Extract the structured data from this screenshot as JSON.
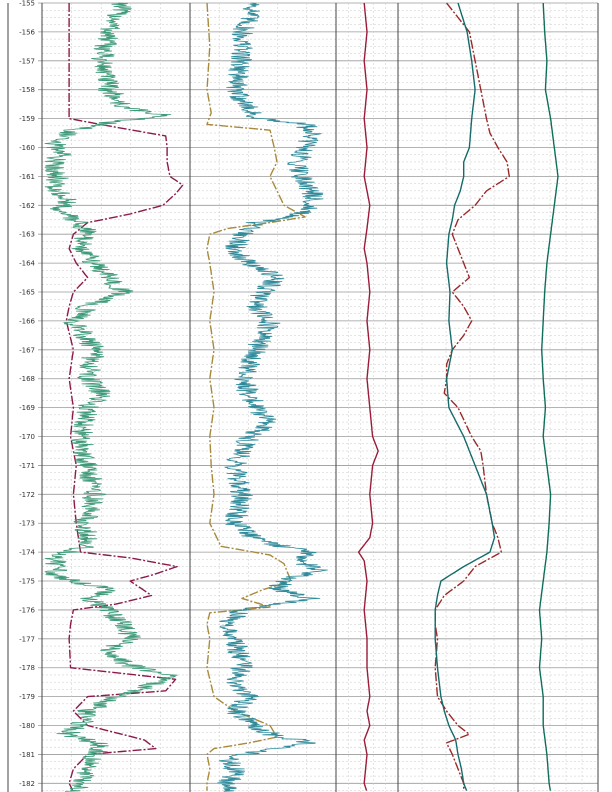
{
  "chart_data": {
    "type": "line",
    "title": "",
    "xlabel": "",
    "ylabel": "",
    "ylim": [
      -182.3,
      -155.0
    ],
    "y_ticks": [
      -155,
      -156,
      -157,
      -158,
      -159,
      -160,
      -161,
      -162,
      -163,
      -164,
      -165,
      -166,
      -167,
      -168,
      -169,
      -170,
      -171,
      -172,
      -173,
      -174,
      -175,
      -176,
      -177,
      -178,
      -179,
      -180,
      -181,
      -182
    ],
    "grid": true,
    "tracks": [
      {
        "series": [
          {
            "color": "#8b1a4a",
            "style": "dashdot",
            "xlim": [
              0,
              1
            ],
            "depth": [
              -155.0,
              -159.0,
              -159.3,
              -159.6,
              -160.0,
              -160.5,
              -161.0,
              -161.3,
              -161.6,
              -162.0,
              -162.3,
              -162.6,
              -163.0,
              -163.5,
              -164.0,
              -164.5,
              -165.0,
              -165.5,
              -166.0,
              -167.0,
              -168.0,
              -169.0,
              -170.0,
              -171.0,
              -172.0,
              -173.0,
              -174.0,
              -174.2,
              -174.5,
              -174.8,
              -175.0,
              -175.5,
              -175.8,
              -176.0,
              -176.5,
              -177.0,
              -178.0,
              -178.4,
              -178.8,
              -179.0,
              -179.5,
              -180.0,
              -180.5,
              -180.8,
              -181.0,
              -181.5,
              -182.0,
              -182.3
            ],
            "value": [
              0.17,
              0.17,
              0.5,
              0.85,
              0.86,
              0.86,
              0.88,
              0.97,
              0.92,
              0.83,
              0.6,
              0.3,
              0.2,
              0.17,
              0.22,
              0.3,
              0.2,
              0.17,
              0.15,
              0.2,
              0.17,
              0.2,
              0.18,
              0.22,
              0.2,
              0.22,
              0.25,
              0.6,
              0.93,
              0.75,
              0.6,
              0.75,
              0.5,
              0.2,
              0.18,
              0.17,
              0.18,
              0.92,
              0.85,
              0.3,
              0.2,
              0.3,
              0.7,
              0.78,
              0.3,
              0.2,
              0.17,
              0.2
            ]
          },
          {
            "color": "#3d9a78",
            "style": "noisy",
            "xlim": [
              0,
              1
            ],
            "depth": [
              -155.0,
              -156.0,
              -157.0,
              -158.0,
              -158.6,
              -158.9,
              -159.1,
              -159.4,
              -159.8,
              -160.2,
              -160.6,
              -161.0,
              -161.4,
              -161.8,
              -162.2,
              -162.6,
              -163.0,
              -163.5,
              -164.0,
              -164.5,
              -165.0,
              -165.5,
              -166.0,
              -167.0,
              -168.0,
              -168.5,
              -169.0,
              -170.0,
              -171.0,
              -172.0,
              -173.0,
              -173.8,
              -174.2,
              -174.5,
              -174.8,
              -175.0,
              -175.3,
              -175.6,
              -176.0,
              -176.5,
              -177.0,
              -177.5,
              -178.0,
              -178.3,
              -178.6,
              -179.0,
              -179.5,
              -180.0,
              -180.3,
              -180.5,
              -180.7,
              -181.0,
              -181.5,
              -182.0,
              -182.3
            ],
            "value": [
              0.55,
              0.45,
              0.4,
              0.45,
              0.55,
              0.85,
              0.5,
              0.2,
              0.05,
              0.12,
              0.05,
              0.1,
              0.05,
              0.15,
              0.1,
              0.25,
              0.3,
              0.25,
              0.35,
              0.45,
              0.55,
              0.3,
              0.2,
              0.35,
              0.3,
              0.4,
              0.3,
              0.25,
              0.3,
              0.35,
              0.28,
              0.3,
              0.05,
              0.1,
              0.05,
              0.2,
              0.45,
              0.3,
              0.45,
              0.55,
              0.6,
              0.4,
              0.65,
              0.9,
              0.75,
              0.5,
              0.3,
              0.25,
              0.15,
              0.3,
              0.4,
              0.35,
              0.3,
              0.25,
              0.2
            ]
          }
        ]
      },
      {
        "series": [
          {
            "color": "#a88a3c",
            "style": "dashdot",
            "xlim": [
              0,
              1
            ],
            "depth": [
              -155.0,
              -156.5,
              -158.0,
              -158.8,
              -159.2,
              -159.4,
              -160.0,
              -160.5,
              -161.0,
              -161.5,
              -162.0,
              -162.4,
              -162.6,
              -162.8,
              -163.0,
              -163.5,
              -164.0,
              -165.0,
              -166.0,
              -167.0,
              -168.0,
              -169.0,
              -170.0,
              -171.0,
              -172.0,
              -173.0,
              -173.8,
              -174.1,
              -174.4,
              -175.0,
              -175.3,
              -175.6,
              -175.9,
              -176.1,
              -176.5,
              -177.0,
              -178.0,
              -179.0,
              -179.5,
              -180.0,
              -180.4,
              -180.6,
              -180.8,
              -181.0,
              -181.5,
              -182.0,
              -182.3
            ],
            "value": [
              0.1,
              0.12,
              0.1,
              0.13,
              0.1,
              0.55,
              0.58,
              0.6,
              0.55,
              0.6,
              0.65,
              0.8,
              0.55,
              0.25,
              0.12,
              0.1,
              0.12,
              0.15,
              0.12,
              0.15,
              0.12,
              0.15,
              0.12,
              0.13,
              0.15,
              0.12,
              0.2,
              0.55,
              0.65,
              0.7,
              0.5,
              0.35,
              0.55,
              0.12,
              0.1,
              0.12,
              0.1,
              0.15,
              0.3,
              0.55,
              0.6,
              0.4,
              0.15,
              0.1,
              0.12,
              0.1,
              0.1
            ]
          },
          {
            "color": "#2e8a9a",
            "style": "noisy",
            "xlim": [
              0,
              1
            ],
            "depth": [
              -155.0,
              -156.0,
              -157.0,
              -158.0,
              -159.0,
              -159.2,
              -159.5,
              -160.0,
              -160.5,
              -161.0,
              -161.5,
              -162.0,
              -162.3,
              -162.6,
              -163.0,
              -163.5,
              -164.0,
              -164.5,
              -165.0,
              -165.5,
              -166.0,
              -167.0,
              -168.0,
              -169.0,
              -169.5,
              -170.0,
              -171.0,
              -172.0,
              -173.0,
              -173.6,
              -174.0,
              -174.3,
              -174.6,
              -175.0,
              -175.3,
              -175.6,
              -176.0,
              -176.5,
              -177.0,
              -178.0,
              -178.5,
              -179.0,
              -179.5,
              -180.0,
              -180.3,
              -180.6,
              -180.9,
              -181.2,
              -181.6,
              -182.0,
              -182.3
            ],
            "value": [
              0.45,
              0.35,
              0.35,
              0.3,
              0.45,
              0.8,
              0.85,
              0.8,
              0.75,
              0.78,
              0.85,
              0.85,
              0.75,
              0.45,
              0.35,
              0.3,
              0.4,
              0.6,
              0.5,
              0.45,
              0.55,
              0.45,
              0.35,
              0.45,
              0.55,
              0.4,
              0.3,
              0.35,
              0.3,
              0.45,
              0.85,
              0.75,
              0.9,
              0.65,
              0.6,
              0.85,
              0.35,
              0.25,
              0.3,
              0.35,
              0.3,
              0.4,
              0.3,
              0.45,
              0.55,
              0.85,
              0.45,
              0.25,
              0.3,
              0.25,
              0.3
            ]
          }
        ]
      },
      {
        "series": [
          {
            "color": "#9a1c38",
            "style": "solid",
            "xlim": [
              0,
              1
            ],
            "depth": [
              -155.0,
              -156.0,
              -157.0,
              -158.0,
              -159.0,
              -160.0,
              -161.0,
              -162.0,
              -162.8,
              -163.5,
              -164.0,
              -165.0,
              -166.0,
              -167.0,
              -168.0,
              -169.0,
              -170.0,
              -170.5,
              -171.0,
              -172.0,
              -173.0,
              -173.5,
              -174.0,
              -174.3,
              -175.0,
              -176.0,
              -177.0,
              -178.0,
              -179.0,
              -179.5,
              -180.0,
              -180.5,
              -181.0,
              -182.0,
              -182.3
            ],
            "value": [
              0.45,
              0.5,
              0.45,
              0.5,
              0.45,
              0.5,
              0.45,
              0.55,
              0.5,
              0.45,
              0.5,
              0.55,
              0.5,
              0.55,
              0.5,
              0.55,
              0.6,
              0.7,
              0.6,
              0.55,
              0.6,
              0.55,
              0.35,
              0.45,
              0.5,
              0.45,
              0.5,
              0.5,
              0.55,
              0.5,
              0.55,
              0.45,
              0.5,
              0.45,
              0.5
            ]
          }
        ]
      },
      {
        "series": [
          {
            "color": "#9a2a2a",
            "style": "dashdot",
            "xlim": [
              0,
              1
            ],
            "depth": [
              -155.0,
              -156.0,
              -157.0,
              -158.0,
              -159.0,
              -159.5,
              -160.0,
              -160.5,
              -161.0,
              -161.5,
              -162.0,
              -162.5,
              -163.0,
              -164.0,
              -164.5,
              -165.0,
              -165.5,
              -166.0,
              -166.5,
              -167.0,
              -167.5,
              -168.0,
              -168.5,
              -169.0,
              -170.0,
              -170.5,
              -171.0,
              -172.0,
              -173.0,
              -173.5,
              -174.0,
              -174.5,
              -175.0,
              -175.5,
              -176.0,
              -176.5,
              -177.0,
              -178.0,
              -179.0,
              -179.5,
              -180.0,
              -180.3,
              -180.6,
              -181.0,
              -181.5,
              -182.0,
              -182.3
            ],
            "value": [
              0.4,
              0.6,
              0.65,
              0.7,
              0.75,
              0.78,
              0.85,
              0.93,
              0.95,
              0.75,
              0.65,
              0.5,
              0.45,
              0.55,
              0.6,
              0.45,
              0.55,
              0.62,
              0.55,
              0.45,
              0.4,
              0.4,
              0.38,
              0.5,
              0.62,
              0.7,
              0.72,
              0.75,
              0.8,
              0.85,
              0.88,
              0.65,
              0.55,
              0.38,
              0.3,
              0.3,
              0.32,
              0.3,
              0.32,
              0.4,
              0.5,
              0.6,
              0.4,
              0.45,
              0.5,
              0.55,
              0.55
            ]
          },
          {
            "color": "#156a6a",
            "style": "solid",
            "xlim": [
              0,
              1
            ],
            "depth": [
              -155.0,
              -156.0,
              -157.0,
              -158.0,
              -159.0,
              -160.0,
              -160.5,
              -161.0,
              -161.5,
              -162.0,
              -162.5,
              -163.0,
              -164.0,
              -165.0,
              -166.0,
              -167.0,
              -168.0,
              -169.0,
              -170.0,
              -171.0,
              -172.0,
              -173.0,
              -173.5,
              -174.0,
              -174.5,
              -175.0,
              -175.5,
              -176.0,
              -177.0,
              -178.0,
              -179.0,
              -179.5,
              -180.0,
              -180.5,
              -181.0,
              -181.5,
              -182.0,
              -182.3
            ],
            "value": [
              0.5,
              0.58,
              0.62,
              0.65,
              0.62,
              0.6,
              0.55,
              0.55,
              0.52,
              0.47,
              0.45,
              0.42,
              0.4,
              0.43,
              0.42,
              0.45,
              0.4,
              0.42,
              0.55,
              0.65,
              0.75,
              0.8,
              0.82,
              0.78,
              0.55,
              0.35,
              0.32,
              0.3,
              0.3,
              0.32,
              0.35,
              0.38,
              0.42,
              0.48,
              0.5,
              0.53,
              0.55,
              0.58
            ]
          }
        ]
      },
      {
        "series": [
          {
            "color": "#0e6e5a",
            "style": "solid",
            "xlim": [
              0,
              1
            ],
            "depth": [
              -155.0,
              -156.0,
              -157.0,
              -158.0,
              -159.0,
              -160.0,
              -161.0,
              -162.0,
              -163.0,
              -164.0,
              -165.0,
              -166.0,
              -167.0,
              -168.0,
              -169.0,
              -170.0,
              -171.0,
              -172.0,
              -173.0,
              -174.0,
              -175.0,
              -176.0,
              -177.0,
              -178.0,
              -179.0,
              -180.0,
              -181.0,
              -182.0,
              -182.3
            ],
            "value": [
              0.3,
              0.32,
              0.35,
              0.33,
              0.4,
              0.45,
              0.5,
              0.45,
              0.4,
              0.35,
              0.32,
              0.3,
              0.28,
              0.3,
              0.33,
              0.3,
              0.35,
              0.4,
              0.38,
              0.35,
              0.3,
              0.25,
              0.28,
              0.25,
              0.3,
              0.3,
              0.35,
              0.38,
              0.4
            ]
          }
        ]
      }
    ]
  }
}
